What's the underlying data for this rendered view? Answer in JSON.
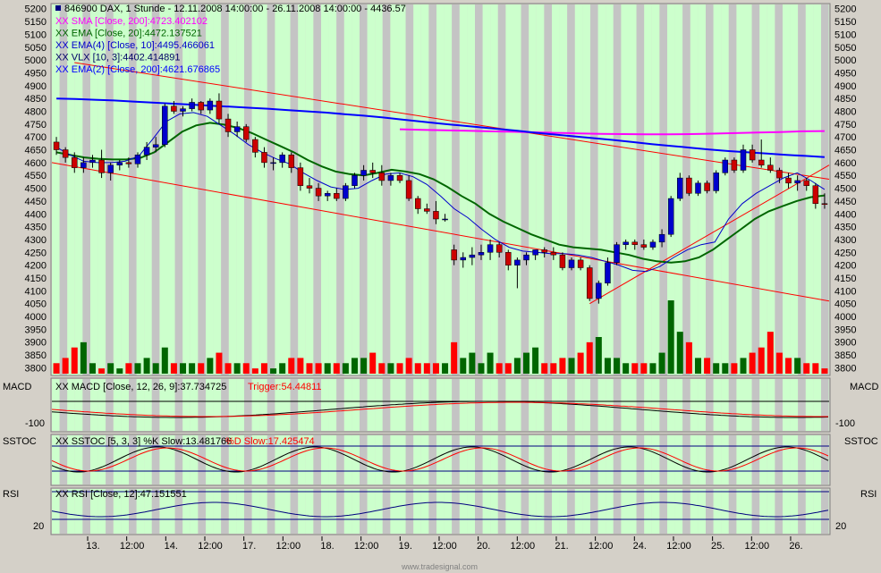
{
  "colors": {
    "frame": "#d4d0c8",
    "band_green": "#ccffcc",
    "band_gray": "#c4c4c4",
    "candle_up": "#0000cc",
    "candle_down": "#cc0000",
    "sma": "#ff00ff",
    "ema20": "#006600",
    "ema4": "#0000cc",
    "vlx": "#000066",
    "ema200": "#0000ff",
    "trend": "#ff0000",
    "vol_up": "#006600",
    "vol_down": "#ff0000",
    "signal": "#ff0000",
    "hline": "#000080"
  },
  "header": {
    "title": "846900  DAX, 1 Stunde - 12.11.2008 14:00:00 - 26.11.2008 14:00:00 - 4436.57"
  },
  "legend": [
    {
      "text": "XX SMA [Close, 200]:4723.402102",
      "color": "#ff00ff"
    },
    {
      "text": "XX EMA [Close, 20]:4472.137521",
      "color": "#006600"
    },
    {
      "text": "XX EMA(4) [Close, 10]:4495.466061",
      "color": "#0000cc"
    },
    {
      "text": "XX VLX [10, 3]:4402.414891",
      "color": "#000066"
    },
    {
      "text": "XX EMA(2) [Close, 200]:4621.676865",
      "color": "#0000ff"
    }
  ],
  "macd": {
    "panel_label": "MACD",
    "legend_main": "XX MACD [Close, 12, 26, 9]:37.734725",
    "legend_trigger": "Trigger:54.44811",
    "tick": "-100"
  },
  "sstoc": {
    "panel_label": "SSTOC",
    "legend_main": "XX SSTOC [5, 3, 3] %K Slow:13.481766",
    "legend_trigger": "%D Slow:17.425474"
  },
  "rsi": {
    "panel_label": "RSI",
    "legend_main": "XX RSI [Close, 12]:47.151551",
    "tick": "20"
  },
  "footer": {
    "watermark": "www.tradesignal.com"
  },
  "chart_data": {
    "type": "candlestick",
    "title": "846900  DAX, 1 Stunde - 12.11.2008 14:00:00 - 26.11.2008 14:00:00 - 4436.57",
    "y_ticks": [
      5200,
      5150,
      5100,
      5050,
      5000,
      4950,
      4900,
      4850,
      4800,
      4750,
      4700,
      4650,
      4600,
      4550,
      4500,
      4450,
      4400,
      4350,
      4300,
      4250,
      4200,
      4150,
      4100,
      4050,
      4000,
      3950,
      3900,
      3850,
      3800
    ],
    "ylim": [
      3770,
      5220
    ],
    "x_labels": [
      "13.",
      "12:00",
      "14.",
      "12:00",
      "17.",
      "12:00",
      "18.",
      "12:00",
      "19.",
      "12:00",
      "20.",
      "12:00",
      "21.",
      "12:00",
      "24.",
      "12:00",
      "25.",
      "12:00",
      "26."
    ],
    "candles": [
      [
        4680,
        4700,
        4630,
        4650
      ],
      [
        4650,
        4660,
        4600,
        4620
      ],
      [
        4620,
        4640,
        4560,
        4580
      ],
      [
        4580,
        4620,
        4560,
        4600
      ],
      [
        4600,
        4630,
        4580,
        4610
      ],
      [
        4610,
        4650,
        4540,
        4560
      ],
      [
        4560,
        4600,
        4530,
        4590
      ],
      [
        4590,
        4610,
        4570,
        4600
      ],
      [
        4600,
        4620,
        4580,
        4595
      ],
      [
        4595,
        4640,
        4580,
        4630
      ],
      [
        4630,
        4680,
        4610,
        4660
      ],
      [
        4660,
        4700,
        4640,
        4670
      ],
      [
        4670,
        4830,
        4660,
        4820
      ],
      [
        4820,
        4840,
        4790,
        4800
      ],
      [
        4800,
        4820,
        4780,
        4810
      ],
      [
        4810,
        4850,
        4800,
        4835
      ],
      [
        4835,
        4840,
        4790,
        4805
      ],
      [
        4805,
        4850,
        4790,
        4840
      ],
      [
        4840,
        4870,
        4750,
        4770
      ],
      [
        4770,
        4790,
        4700,
        4720
      ],
      [
        4720,
        4760,
        4700,
        4740
      ],
      [
        4740,
        4750,
        4680,
        4690
      ],
      [
        4690,
        4700,
        4620,
        4640
      ],
      [
        4640,
        4660,
        4580,
        4600
      ],
      [
        4600,
        4620,
        4570,
        4600
      ],
      [
        4600,
        4640,
        4580,
        4630
      ],
      [
        4630,
        4640,
        4560,
        4580
      ],
      [
        4580,
        4600,
        4490,
        4510
      ],
      [
        4510,
        4540,
        4480,
        4500
      ],
      [
        4500,
        4520,
        4450,
        4470
      ],
      [
        4470,
        4490,
        4450,
        4480
      ],
      [
        4480,
        4500,
        4450,
        4460
      ],
      [
        4460,
        4520,
        4450,
        4510
      ],
      [
        4510,
        4560,
        4500,
        4550
      ],
      [
        4550,
        4590,
        4530,
        4570
      ],
      [
        4570,
        4600,
        4540,
        4560
      ],
      [
        4560,
        4590,
        4510,
        4530
      ],
      [
        4530,
        4560,
        4510,
        4550
      ],
      [
        4550,
        4560,
        4520,
        4530
      ],
      [
        4530,
        4550,
        4450,
        4460
      ],
      [
        4460,
        4470,
        4400,
        4420
      ],
      [
        4420,
        4440,
        4400,
        4410
      ],
      [
        4410,
        4450,
        4360,
        4380
      ],
      [
        4380,
        4400,
        4370,
        4380
      ],
      [
        4260,
        4280,
        4200,
        4220
      ],
      [
        4220,
        4250,
        4190,
        4230
      ],
      [
        4230,
        4270,
        4200,
        4240
      ],
      [
        4240,
        4280,
        4220,
        4250
      ],
      [
        4250,
        4300,
        4220,
        4280
      ],
      [
        4280,
        4290,
        4230,
        4250
      ],
      [
        4250,
        4260,
        4180,
        4200
      ],
      [
        4200,
        4230,
        4110,
        4220
      ],
      [
        4220,
        4250,
        4200,
        4240
      ],
      [
        4240,
        4260,
        4220,
        4260
      ],
      [
        4260,
        4270,
        4230,
        4250
      ],
      [
        4250,
        4270,
        4220,
        4240
      ],
      [
        4240,
        4250,
        4180,
        4190
      ],
      [
        4190,
        4230,
        4180,
        4220
      ],
      [
        4220,
        4230,
        4180,
        4190
      ],
      [
        4190,
        4200,
        4060,
        4070
      ],
      [
        4070,
        4140,
        4050,
        4130
      ],
      [
        4130,
        4230,
        4120,
        4210
      ],
      [
        4210,
        4290,
        4200,
        4280
      ],
      [
        4280,
        4300,
        4260,
        4290
      ],
      [
        4290,
        4300,
        4260,
        4280
      ],
      [
        4280,
        4300,
        4260,
        4270
      ],
      [
        4270,
        4300,
        4260,
        4290
      ],
      [
        4290,
        4340,
        4270,
        4320
      ],
      [
        4320,
        4470,
        4310,
        4460
      ],
      [
        4460,
        4560,
        4450,
        4540
      ],
      [
        4540,
        4550,
        4470,
        4480
      ],
      [
        4480,
        4530,
        4470,
        4520
      ],
      [
        4520,
        4530,
        4480,
        4490
      ],
      [
        4490,
        4570,
        4480,
        4560
      ],
      [
        4560,
        4620,
        4550,
        4610
      ],
      [
        4610,
        4620,
        4560,
        4570
      ],
      [
        4570,
        4670,
        4560,
        4650
      ],
      [
        4650,
        4670,
        4600,
        4610
      ],
      [
        4610,
        4690,
        4580,
        4590
      ],
      [
        4590,
        4620,
        4560,
        4570
      ],
      [
        4570,
        4580,
        4520,
        4540
      ],
      [
        4540,
        4560,
        4500,
        4520
      ],
      [
        4520,
        4550,
        4490,
        4530
      ],
      [
        4530,
        4540,
        4490,
        4510
      ],
      [
        4510,
        4520,
        4420,
        4440
      ],
      [
        4440,
        4480,
        4420,
        4436.57
      ]
    ],
    "volume": [
      2,
      3,
      5,
      6,
      2,
      1,
      2,
      1,
      2,
      2,
      3,
      2,
      5,
      2,
      2,
      2,
      2,
      3,
      4,
      2,
      2,
      2,
      1,
      2,
      1,
      2,
      3,
      3,
      2,
      2,
      2,
      2,
      2,
      3,
      3,
      4,
      2,
      2,
      2,
      3,
      2,
      2,
      2,
      2,
      6,
      3,
      4,
      2,
      4,
      2,
      2,
      3,
      4,
      5,
      2,
      2,
      3,
      3,
      4,
      6,
      7,
      3,
      3,
      2,
      2,
      2,
      2,
      4,
      14,
      8,
      6,
      3,
      3,
      2,
      2,
      2,
      3,
      4,
      5,
      8,
      4,
      3,
      3,
      2,
      2,
      1
    ],
    "series": [
      {
        "name": "XX SMA [Close, 200]:4723.402102",
        "values": [
          4730,
          4728,
          4726,
          4724,
          4722,
          4720,
          4718,
          4716,
          4714,
          4712,
          4711,
          4710,
          4710,
          4711,
          4713,
          4715,
          4717,
          4719,
          4722,
          4723
        ]
      },
      {
        "name": "XX EMA(2) [Close, 200]:4621.676865",
        "values": [
          4850,
          4848,
          4845,
          4842,
          4838,
          4834,
          4830,
          4826,
          4822,
          4818,
          4814,
          4810,
          4805,
          4800,
          4795,
          4789,
          4783,
          4776,
          4768,
          4760,
          4752,
          4745,
          4738,
          4731,
          4724,
          4716,
          4709,
          4702,
          4695,
          4688,
          4680,
          4672,
          4665,
          4658,
          4651,
          4645,
          4640,
          4635,
          4630,
          4626,
          4621.68
        ]
      },
      {
        "name": "XX EMA [Close, 20]:4472.137521",
        "values": [
          4640,
          4630,
          4620,
          4615,
          4612,
          4612,
          4618,
          4640,
          4680,
          4720,
          4745,
          4755,
          4748,
          4735,
          4715,
          4690,
          4665,
          4640,
          4610,
          4585,
          4565,
          4555,
          4550,
          4560,
          4572,
          4565,
          4555,
          4535,
          4505,
          4470,
          4440,
          4400,
          4370,
          4345,
          4320,
          4300,
          4280,
          4270,
          4265,
          4260,
          4250,
          4240,
          4225,
          4215,
          4210,
          4215,
          4230,
          4260,
          4300,
          4340,
          4380,
          4410,
          4430,
          4450,
          4465,
          4472.14
        ]
      },
      {
        "name": "XX EMA(4) [Close, 10]:4495.466061",
        "values": [
          4660,
          4630,
          4605,
          4600,
          4600,
          4605,
          4625,
          4690,
          4760,
          4790,
          4795,
          4780,
          4745,
          4710,
          4670,
          4640,
          4615,
          4595,
          4560,
          4530,
          4505,
          4495,
          4500,
          4530,
          4555,
          4560,
          4545,
          4515,
          4470,
          4420,
          4385,
          4340,
          4300,
          4270,
          4255,
          4250,
          4245,
          4245,
          4240,
          4230,
          4215,
          4200,
          4180,
          4175,
          4195,
          4230,
          4260,
          4280,
          4290,
          4380,
          4440,
          4480,
          4510,
          4540,
          4560,
          4530,
          4495.47
        ]
      }
    ],
    "panels": [
      {
        "name": "MACD",
        "ticks": [
          "-100"
        ]
      },
      {
        "name": "SSTOC",
        "ticks": []
      },
      {
        "name": "RSI",
        "ticks": [
          "20"
        ]
      }
    ]
  }
}
